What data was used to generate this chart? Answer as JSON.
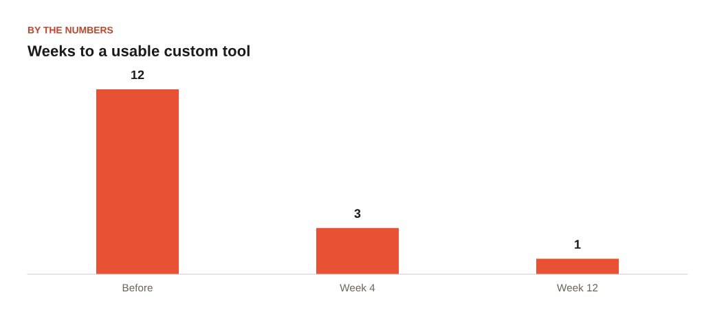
{
  "chart_data": {
    "type": "bar",
    "subtitle": "BY THE NUMBERS",
    "title": "Weeks to a usable custom tool",
    "categories": [
      "Before",
      "Week 4",
      "Week 12"
    ],
    "values": [
      12,
      3,
      1
    ],
    "color": "#e85134",
    "data_labels": true,
    "grid": false,
    "legend": false
  }
}
